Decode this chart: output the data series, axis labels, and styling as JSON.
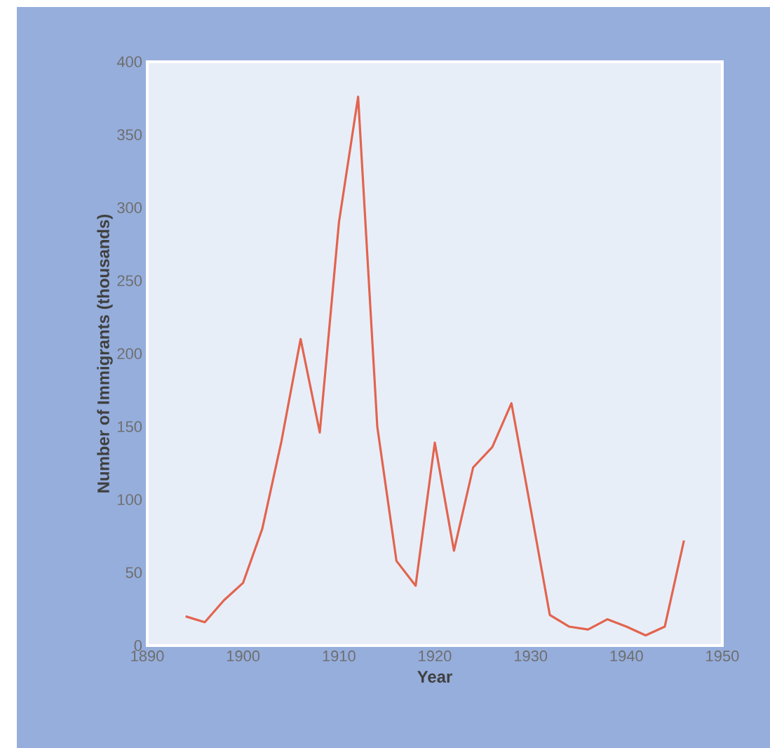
{
  "chart_data": {
    "type": "line",
    "xlabel": "Year",
    "ylabel": "Number of Immigrants (thousands)",
    "x": [
      1894,
      1896,
      1898,
      1900,
      1902,
      1904,
      1906,
      1908,
      1910,
      1912,
      1914,
      1916,
      1918,
      1920,
      1922,
      1924,
      1926,
      1928,
      1930,
      1932,
      1934,
      1936,
      1938,
      1940,
      1942,
      1944,
      1946
    ],
    "series": [
      {
        "color": "#e2644e",
        "values": [
          20,
          16,
          31,
          43,
          80,
          140,
          210,
          146,
          290,
          376,
          150,
          58,
          41,
          139,
          65,
          122,
          136,
          166,
          94,
          21,
          13,
          11,
          18,
          13,
          7,
          13,
          72
        ]
      }
    ],
    "xlim": [
      1890,
      1950
    ],
    "ylim": [
      0,
      400
    ],
    "xticks": [
      1890,
      1900,
      1910,
      1920,
      1930,
      1940,
      1950
    ],
    "yticks": [
      0,
      50,
      100,
      150,
      200,
      250,
      300,
      350,
      400
    ],
    "marker": "none",
    "line_style": "solid"
  }
}
